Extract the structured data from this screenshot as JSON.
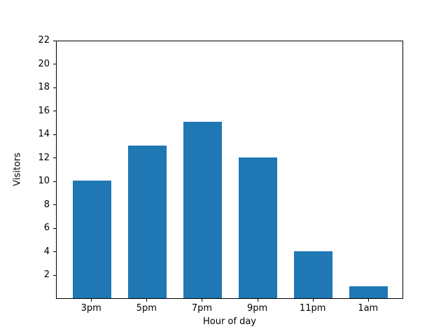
{
  "chart_data": {
    "type": "bar",
    "categories": [
      "3pm",
      "5pm",
      "7pm",
      "9pm",
      "11pm",
      "1am"
    ],
    "values": [
      10,
      13,
      15,
      12,
      4,
      1
    ],
    "title": "",
    "xlabel": "Hour of day",
    "ylabel": "Visitors",
    "ylim": [
      0,
      22
    ],
    "y_ticks": [
      2,
      4,
      6,
      8,
      10,
      12,
      14,
      16,
      18,
      20,
      22
    ],
    "bar_color": "#1f77b4",
    "axis_color": "#000000",
    "background_color": "#ffffff",
    "grid": false,
    "legend": null
  }
}
